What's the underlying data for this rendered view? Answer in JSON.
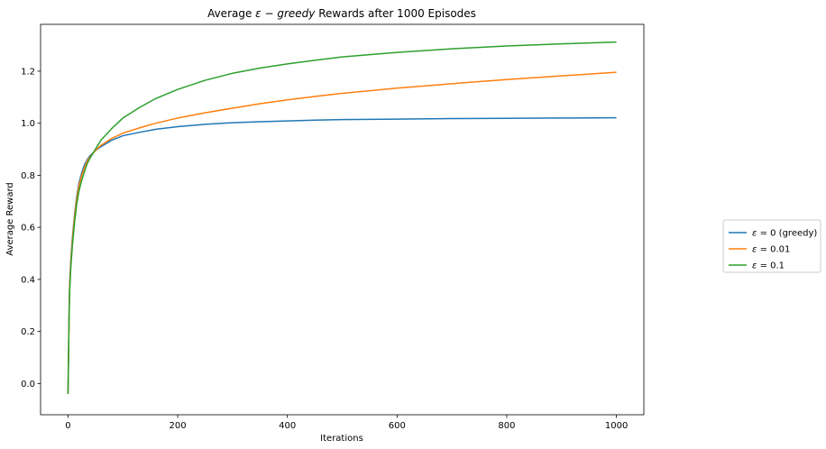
{
  "chart_data": {
    "type": "line",
    "title": "Average ε − greedy Rewards after 1000 Episodes",
    "title_parts": [
      {
        "text": "Average ",
        "italic": false
      },
      {
        "text": "ε",
        "italic": true
      },
      {
        "text": " − ",
        "italic": false
      },
      {
        "text": "greedy",
        "italic": true
      },
      {
        "text": " Rewards after 1000 Episodes",
        "italic": false
      }
    ],
    "xlabel": "Iterations",
    "ylabel": "Average Reward",
    "xlim": [
      -50,
      1050
    ],
    "ylim": [
      -0.12,
      1.38
    ],
    "xticks": [
      0,
      200,
      400,
      600,
      800,
      1000
    ],
    "yticks": [
      0.0,
      0.2,
      0.4,
      0.6,
      0.8,
      1.0,
      1.2
    ],
    "xtick_labels": [
      "0",
      "200",
      "400",
      "600",
      "800",
      "1000"
    ],
    "ytick_labels": [
      "0.0",
      "0.2",
      "0.4",
      "0.6",
      "0.8",
      "1.0",
      "1.2"
    ],
    "grid": false,
    "legend_position": "outside right",
    "series": [
      {
        "name": "ε = 0 (greedy)",
        "name_parts": [
          {
            "text": "ε",
            "italic": true
          },
          {
            "text": " = 0 (greedy)",
            "italic": false
          }
        ],
        "color": "#1f77b4",
        "x": [
          0,
          1,
          2,
          3,
          5,
          8,
          12,
          16,
          20,
          25,
          30,
          35,
          40,
          50,
          60,
          80,
          100,
          130,
          160,
          200,
          250,
          300,
          350,
          400,
          450,
          500,
          600,
          700,
          800,
          900,
          1000
        ],
        "y": [
          -0.04,
          0.12,
          0.28,
          0.38,
          0.47,
          0.56,
          0.65,
          0.72,
          0.77,
          0.81,
          0.84,
          0.86,
          0.875,
          0.895,
          0.91,
          0.935,
          0.952,
          0.965,
          0.977,
          0.987,
          0.996,
          1.002,
          1.006,
          1.009,
          1.012,
          1.014,
          1.016,
          1.018,
          1.019,
          1.02,
          1.021
        ]
      },
      {
        "name": "ε = 0.01",
        "name_parts": [
          {
            "text": "ε",
            "italic": true
          },
          {
            "text": " = 0.01",
            "italic": false
          }
        ],
        "color": "#ff7f0e",
        "x": [
          0,
          1,
          2,
          3,
          5,
          8,
          12,
          16,
          20,
          25,
          30,
          35,
          40,
          50,
          60,
          80,
          100,
          130,
          160,
          200,
          250,
          300,
          350,
          400,
          450,
          500,
          600,
          700,
          800,
          900,
          1000
        ],
        "y": [
          -0.04,
          0.12,
          0.27,
          0.37,
          0.46,
          0.55,
          0.64,
          0.71,
          0.76,
          0.8,
          0.83,
          0.855,
          0.87,
          0.895,
          0.915,
          0.942,
          0.962,
          0.982,
          1.0,
          1.02,
          1.04,
          1.058,
          1.075,
          1.09,
          1.103,
          1.115,
          1.135,
          1.152,
          1.168,
          1.182,
          1.196
        ]
      },
      {
        "name": "ε = 0.1",
        "name_parts": [
          {
            "text": "ε",
            "italic": true
          },
          {
            "text": " = 0.1",
            "italic": false
          }
        ],
        "color": "#2ca02c",
        "x": [
          0,
          1,
          2,
          3,
          5,
          8,
          12,
          16,
          20,
          25,
          30,
          35,
          40,
          50,
          60,
          80,
          100,
          130,
          160,
          200,
          250,
          300,
          350,
          400,
          450,
          500,
          600,
          700,
          800,
          900,
          1000
        ],
        "y": [
          -0.04,
          0.1,
          0.25,
          0.35,
          0.44,
          0.53,
          0.62,
          0.69,
          0.74,
          0.78,
          0.815,
          0.845,
          0.865,
          0.9,
          0.935,
          0.98,
          1.02,
          1.06,
          1.095,
          1.13,
          1.165,
          1.192,
          1.212,
          1.228,
          1.242,
          1.255,
          1.272,
          1.286,
          1.297,
          1.305,
          1.312
        ]
      }
    ]
  }
}
